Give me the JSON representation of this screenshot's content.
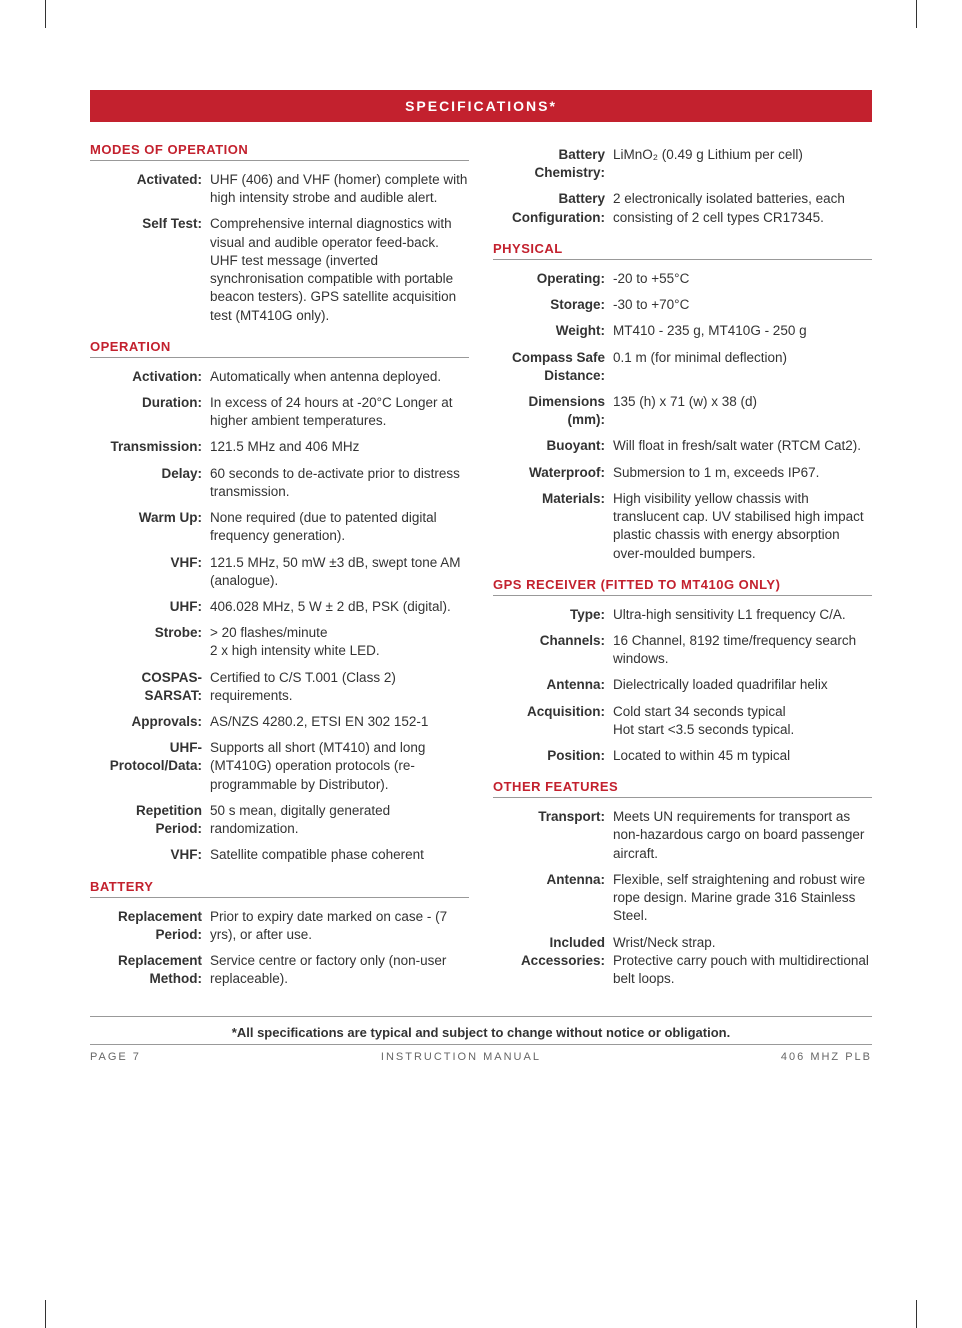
{
  "header": "SPECIFICATIONS*",
  "footnote": "*All specifications are typical and subject to change without notice or obligation.",
  "footer": {
    "left": "PAGE 7",
    "center": "INSTRUCTION MANUAL",
    "right": "406 MHZ PLB"
  },
  "left_sections": [
    {
      "title": "MODES OF OPERATION",
      "rows": [
        {
          "label": "Activated:",
          "value": "UHF (406) and VHF (homer) complete with high intensity strobe and audible alert."
        },
        {
          "label": "Self Test:",
          "value": "Comprehensive internal diagnostics with visual and audible operator feed-back. UHF test message (inverted synchronisation compatible with portable beacon testers). GPS satellite acquisition test (MT410G only)."
        }
      ]
    },
    {
      "title": "OPERATION",
      "rows": [
        {
          "label": "Activation:",
          "value": "Automatically when antenna deployed."
        },
        {
          "label": "Duration:",
          "value": "In excess of 24 hours at -20°C Longer at higher ambient temperatures."
        },
        {
          "label": "Transmission:",
          "value": "121.5 MHz and 406 MHz"
        },
        {
          "label": "Delay:",
          "value": "60 seconds to de-activate prior to distress transmission."
        },
        {
          "label": "Warm Up:",
          "value": "None required (due to patented digital frequency generation)."
        },
        {
          "label": "VHF:",
          "value": "121.5 MHz, 50 mW ±3 dB, swept tone AM (analogue)."
        },
        {
          "label": "UHF:",
          "value": "406.028 MHz, 5 W ± 2 dB, PSK (digital)."
        },
        {
          "label": "Strobe:",
          "value": "> 20 flashes/minute\n2 x high intensity white LED."
        },
        {
          "label": "COSPAS-SARSAT:",
          "value": "Certified to C/S T.001 (Class 2) requirements."
        },
        {
          "label": "Approvals:",
          "value": "AS/NZS 4280.2, ETSI EN 302 152-1"
        },
        {
          "label": "UHF-Protocol/Data:",
          "value": "Supports all short (MT410) and long (MT410G) operation protocols (re-programmable by Distributor)."
        },
        {
          "label": "Repetition Period:",
          "value": "50 s mean, digitally generated randomization."
        },
        {
          "label": "VHF:",
          "value": "Satellite compatible phase coherent"
        }
      ]
    },
    {
      "title": "BATTERY",
      "rows": [
        {
          "label": "Replacement Period:",
          "value": "Prior to expiry date marked on case - (7 yrs), or after use."
        },
        {
          "label": "Replacement Method:",
          "value": "Service centre or factory only (non-user replaceable)."
        }
      ]
    }
  ],
  "right_sections": [
    {
      "title": "",
      "rows": [
        {
          "label": "Battery Chemistry:",
          "value": "LiMnO₂ (0.49 g Lithium per cell)"
        },
        {
          "label": "Battery Configuration:",
          "value": "2 electronically isolated batteries, each consisting of 2 cell types CR17345."
        }
      ]
    },
    {
      "title": "PHYSICAL",
      "rows": [
        {
          "label": "Operating:",
          "value": "-20 to +55°C"
        },
        {
          "label": "Storage:",
          "value": "-30 to +70°C"
        },
        {
          "label": "Weight:",
          "value": "MT410 - 235 g, MT410G - 250 g"
        },
        {
          "label": "Compass Safe Distance:",
          "value": "0.1 m (for minimal deflection)"
        },
        {
          "label": "Dimensions (mm):",
          "value": "135 (h) x 71 (w) x 38 (d)"
        },
        {
          "label": "Buoyant:",
          "value": "Will float in fresh/salt water (RTCM Cat2)."
        },
        {
          "label": "Waterproof:",
          "value": "Submersion to 1 m, exceeds IP67."
        },
        {
          "label": "Materials:",
          "value": "High visibility yellow chassis with translucent cap. UV stabilised high impact plastic chassis with energy absorption over-moulded bumpers."
        }
      ]
    },
    {
      "title": "GPS RECEIVER (FITTED TO MT410G ONLY)",
      "rows": [
        {
          "label": "Type:",
          "value": "Ultra-high sensitivity L1 frequency C/A."
        },
        {
          "label": "Channels:",
          "value": "16 Channel, 8192 time/frequency search windows."
        },
        {
          "label": "Antenna:",
          "value": "Dielectrically loaded quadrifilar helix"
        },
        {
          "label": "Acquisition:",
          "value": "Cold start 34 seconds typical\nHot start <3.5 seconds typical."
        },
        {
          "label": "Position:",
          "value": "Located to within 45 m typical"
        }
      ]
    },
    {
      "title": "OTHER FEATURES",
      "rows": [
        {
          "label": "Transport:",
          "value": "Meets UN requirements for transport as non-hazardous cargo on board passenger aircraft."
        },
        {
          "label": "Antenna:",
          "value": "Flexible, self straightening and robust wire rope design. Marine grade 316 Stainless Steel."
        },
        {
          "label": "Included Accessories:",
          "value": "Wrist/Neck strap.\nProtective carry pouch with multidirectional belt loops."
        }
      ]
    }
  ],
  "style": {
    "accent_color": "#c3212e",
    "text_color": "#333333",
    "rule_color": "#999999",
    "background": "#ffffff",
    "body_font_size": 13.5,
    "title_font_size": 13,
    "label_col_width": 120
  }
}
